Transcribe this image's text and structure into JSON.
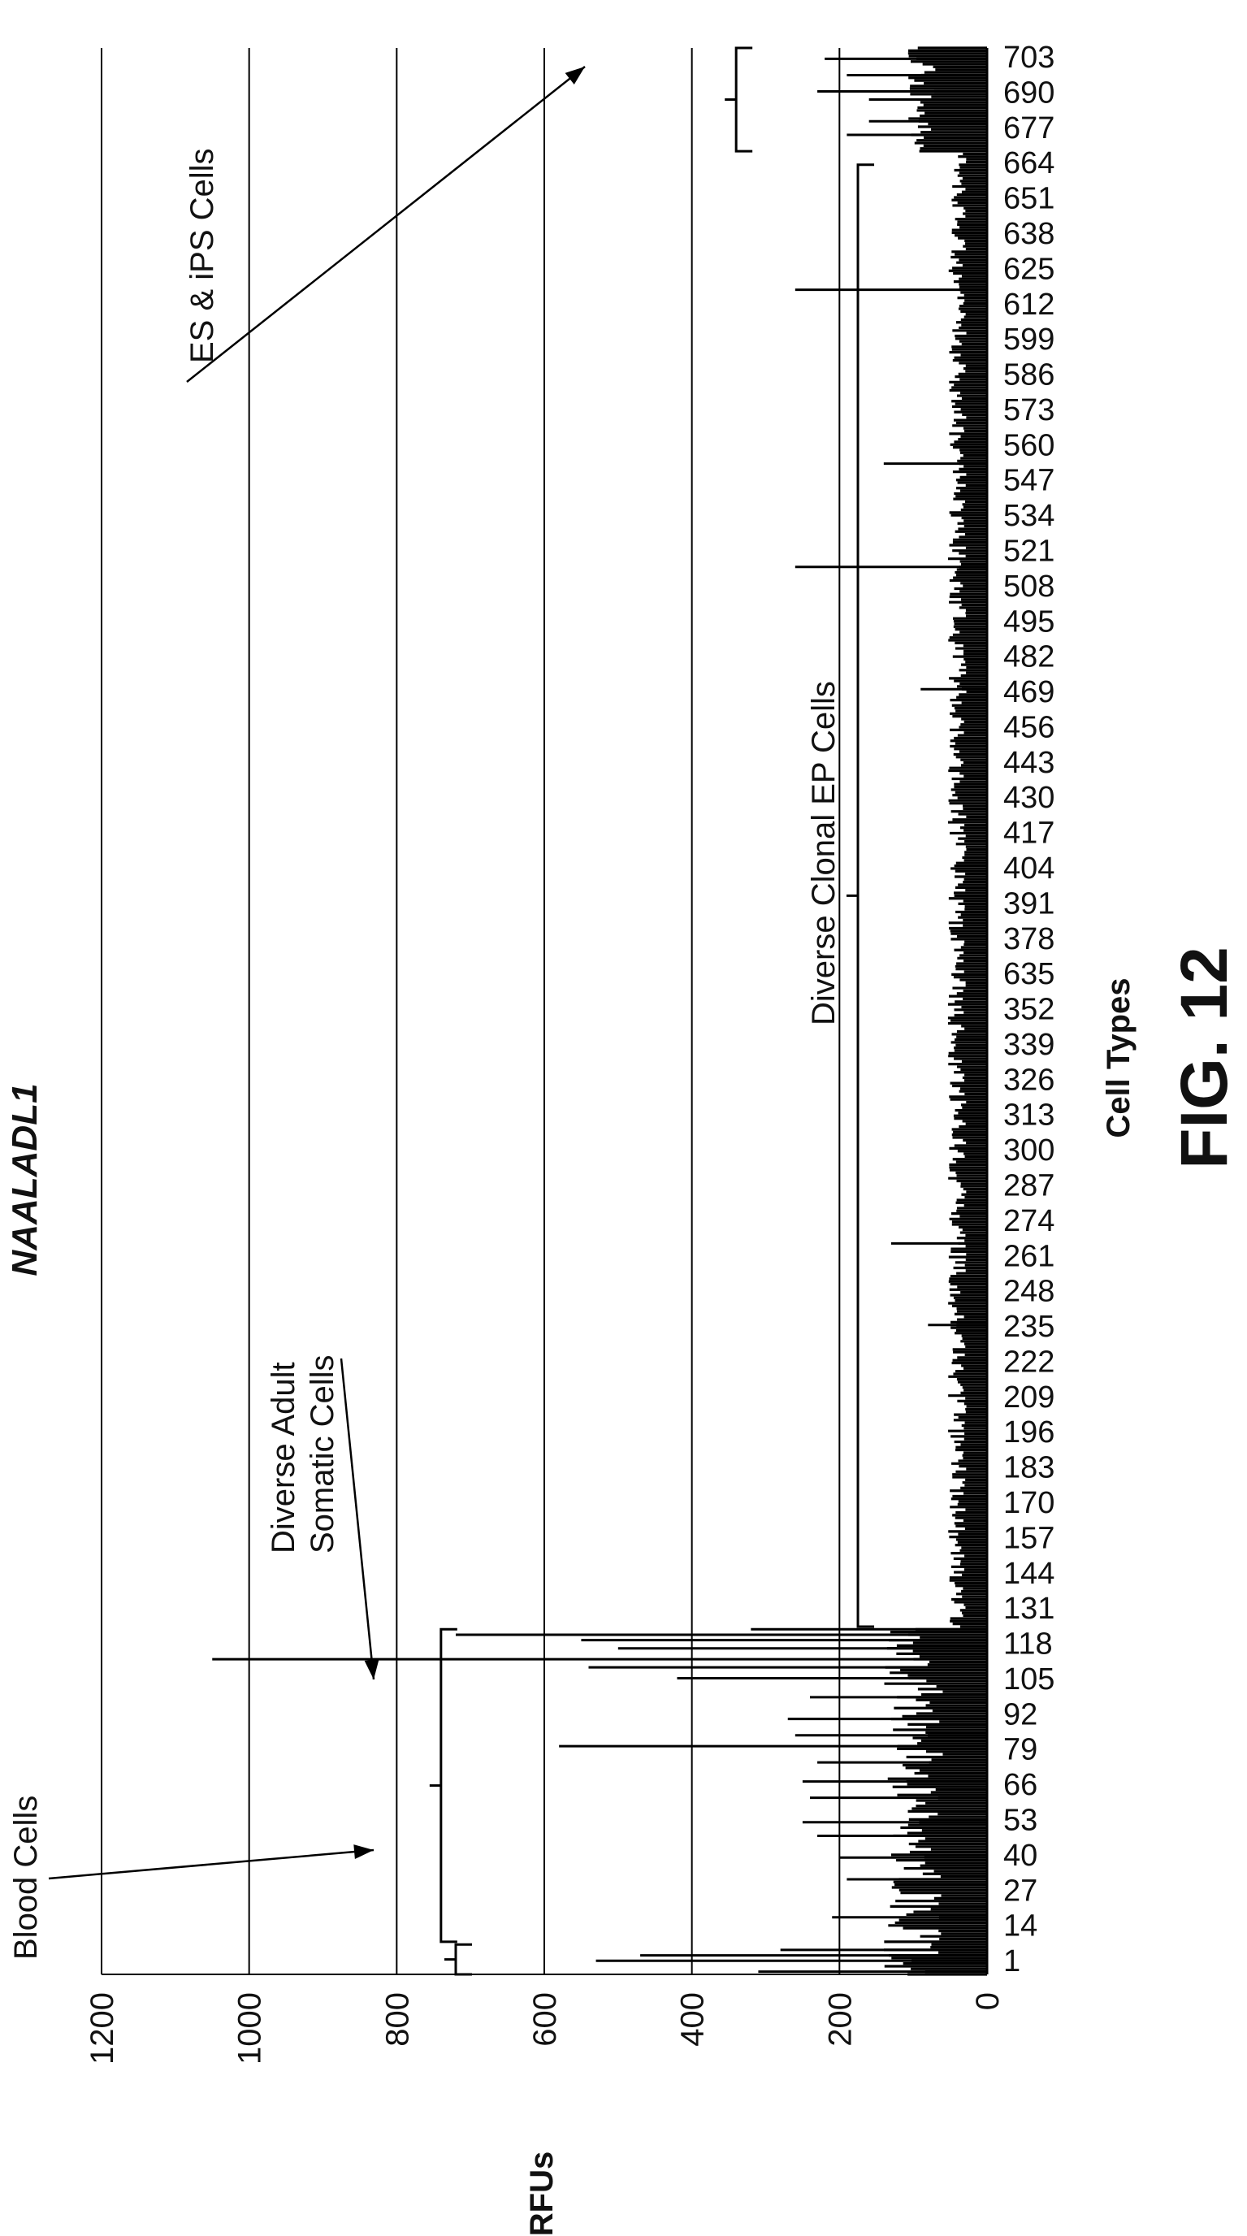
{
  "chart_data": {
    "type": "bar",
    "title": "NAALADL1",
    "figure_label": "FIG. 12",
    "xlabel": "Cell Types",
    "ylabel": "RFUs",
    "ylim": [
      0,
      1200
    ],
    "y_ticks": [
      0,
      200,
      400,
      600,
      800,
      1000,
      1200
    ],
    "x_range": [
      1,
      710
    ],
    "x_tick_labels": [
      "1",
      "14",
      "27",
      "40",
      "53",
      "66",
      "79",
      "92",
      "105",
      "118",
      "131",
      "144",
      "157",
      "170",
      "183",
      "196",
      "209",
      "222",
      "235",
      "248",
      "261",
      "274",
      "287",
      "300",
      "313",
      "326",
      "339",
      "352",
      "635",
      "378",
      "391",
      "404",
      "417",
      "430",
      "443",
      "456",
      "469",
      "482",
      "495",
      "508",
      "521",
      "534",
      "547",
      "560",
      "573",
      "586",
      "599",
      "612",
      "625",
      "638",
      "651",
      "664",
      "677",
      "690",
      "703"
    ],
    "grid": true,
    "reference_line": 200,
    "groups": [
      {
        "label": "Blood Cells",
        "start": 1,
        "end": 12
      },
      {
        "label": "Diverse Adult Somatic Cells",
        "start": 13,
        "end": 128
      },
      {
        "label": "Diverse Clonal EP Cells",
        "start": 129,
        "end": 667
      },
      {
        "label": "ES & iPS Cells",
        "start": 672,
        "end": 710
      }
    ],
    "peaks": [
      {
        "x": 2,
        "value": 310
      },
      {
        "x": 6,
        "value": 530
      },
      {
        "x": 8,
        "value": 470
      },
      {
        "x": 10,
        "value": 280
      },
      {
        "x": 22,
        "value": 210
      },
      {
        "x": 36,
        "value": 190
      },
      {
        "x": 44,
        "value": 200
      },
      {
        "x": 52,
        "value": 230
      },
      {
        "x": 57,
        "value": 250
      },
      {
        "x": 66,
        "value": 240
      },
      {
        "x": 72,
        "value": 250
      },
      {
        "x": 79,
        "value": 230
      },
      {
        "x": 85,
        "value": 580
      },
      {
        "x": 89,
        "value": 260
      },
      {
        "x": 95,
        "value": 270
      },
      {
        "x": 103,
        "value": 240
      },
      {
        "x": 110,
        "value": 420
      },
      {
        "x": 114,
        "value": 540
      },
      {
        "x": 117,
        "value": 1050
      },
      {
        "x": 121,
        "value": 500
      },
      {
        "x": 124,
        "value": 550
      },
      {
        "x": 126,
        "value": 720
      },
      {
        "x": 128,
        "value": 320
      },
      {
        "x": 240,
        "value": 80
      },
      {
        "x": 270,
        "value": 130
      },
      {
        "x": 474,
        "value": 90
      },
      {
        "x": 519,
        "value": 260
      },
      {
        "x": 557,
        "value": 140
      },
      {
        "x": 621,
        "value": 260
      },
      {
        "x": 678,
        "value": 190
      },
      {
        "x": 683,
        "value": 160
      },
      {
        "x": 691,
        "value": 160
      },
      {
        "x": 694,
        "value": 230
      },
      {
        "x": 700,
        "value": 190
      },
      {
        "x": 706,
        "value": 220
      }
    ]
  }
}
